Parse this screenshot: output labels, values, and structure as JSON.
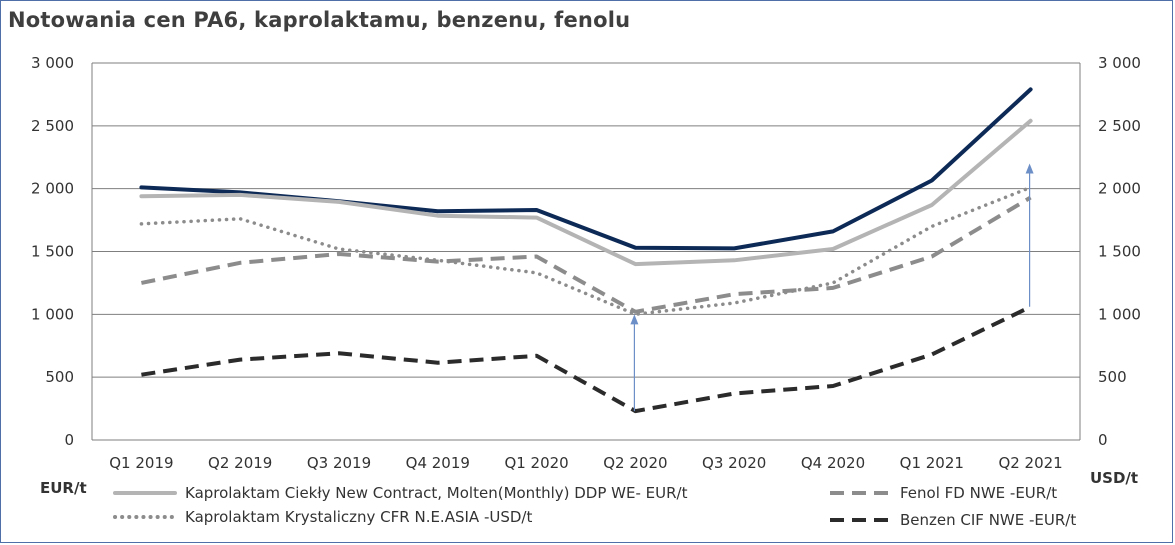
{
  "title": "Notowania cen PA6, kaprolaktamu, benzenu, fenolu",
  "chart_data": {
    "type": "line",
    "title": "Notowania cen PA6, kaprolaktamu, benzenu, fenolu",
    "categories": [
      "Q1 2019",
      "Q2 2019",
      "Q3 2019",
      "Q4 2019",
      "Q1 2020",
      "Q2 2020",
      "Q3 2020",
      "Q4 2020",
      "Q1 2021",
      "Q2 2021"
    ],
    "ylim": [
      0,
      3000
    ],
    "y_ticks": [
      0,
      500,
      1000,
      1500,
      2000,
      2500,
      3000
    ],
    "y_tick_labels": [
      "0",
      "500",
      "1 000",
      "1 500",
      "2 000",
      "2 500",
      "3 000"
    ],
    "ylabel_left": "EUR/t",
    "ylabel_right": "USD/t",
    "grid": true,
    "legend_position": "bottom",
    "series": [
      {
        "name": "",
        "color": "#0d2a57",
        "style": "solid",
        "values": [
          2010,
          1970,
          1900,
          1820,
          1830,
          1530,
          1525,
          1660,
          2065,
          2790
        ]
      },
      {
        "name": "Kaprolaktam Ciekły New Contract, Molten(Monthly) DDP WE- EUR/t",
        "color": "#b4b4b4",
        "style": "solid",
        "values": [
          1940,
          1950,
          1895,
          1785,
          1770,
          1400,
          1430,
          1520,
          1870,
          2540
        ]
      },
      {
        "name": "Fenol FD NWE -EUR/t",
        "color": "#8c8c8c",
        "style": "dashed",
        "values": [
          1250,
          1410,
          1480,
          1420,
          1460,
          1020,
          1160,
          1210,
          1460,
          1930
        ]
      },
      {
        "name": "Kaprolaktam Krystaliczny CFR N.E.ASIA -USD/t",
        "color": "#8c8c8c",
        "style": "dotted",
        "values": [
          1720,
          1760,
          1520,
          1430,
          1330,
          1000,
          1090,
          1250,
          1700,
          2010
        ]
      },
      {
        "name": "Benzen CIF NWE -EUR/t",
        "color": "#2b2b2b",
        "style": "dashed",
        "values": [
          520,
          640,
          690,
          615,
          670,
          230,
          370,
          430,
          680,
          1060
        ]
      }
    ],
    "annotations": [
      {
        "type": "arrow",
        "x": "Q2 2020",
        "from": 230,
        "to": 1000,
        "color": "#6d8fc7"
      },
      {
        "type": "arrow",
        "x": "Q2 2021",
        "from": 1060,
        "to": 2200,
        "color": "#6d8fc7"
      }
    ]
  }
}
